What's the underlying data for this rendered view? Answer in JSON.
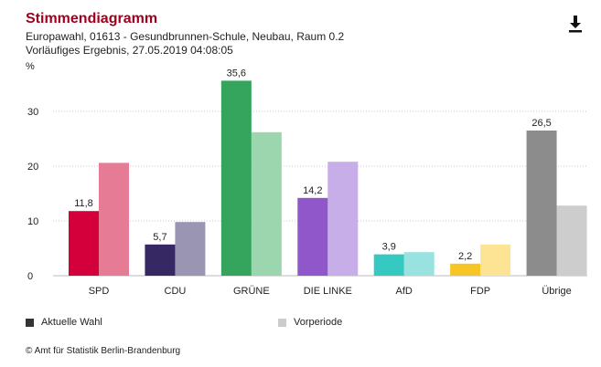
{
  "header": {
    "title": "Stimmendiagramm",
    "subtitle_line1": "Europawahl, 01613 - Gesundbrunnen-Schule, Neubau, Raum 0.2",
    "subtitle_line2": "Vorläufiges Ergebnis, 27.05.2019 04:08:05",
    "download_icon": "download-icon"
  },
  "legend": {
    "current_label": "Aktuelle Wahl",
    "current_color": "#333333",
    "previous_label": "Vorperiode",
    "previous_color": "#cccccc"
  },
  "footer": {
    "copyright": "© Amt für Statistik Berlin-Brandenburg"
  },
  "chart_data": {
    "type": "bar",
    "ylabel": "%",
    "ylim": [
      0,
      40
    ],
    "yticks": [
      "0",
      "10",
      "20",
      "30"
    ],
    "grid": true,
    "legend_position": "bottom",
    "categories": [
      "SPD",
      "CDU",
      "GRÜNE",
      "DIE LINKE",
      "AfD",
      "FDP",
      "Übrige"
    ],
    "series": [
      {
        "name": "Aktuelle Wahl",
        "values": [
          11.8,
          5.7,
          35.6,
          14.2,
          3.9,
          2.2,
          26.5
        ],
        "labels": [
          "11,8",
          "5,7",
          "35,6",
          "14,2",
          "3,9",
          "2,2",
          "26,5"
        ],
        "colors": [
          "#d4003c",
          "#352863",
          "#35a55e",
          "#8f57c9",
          "#35c9c1",
          "#f7c524",
          "#8c8c8c"
        ]
      },
      {
        "name": "Vorperiode",
        "values": [
          20.6,
          9.8,
          26.2,
          20.8,
          4.3,
          5.7,
          12.8
        ],
        "colors": [
          "#e57b95",
          "#9b95b4",
          "#9cd6ae",
          "#c8aee8",
          "#98e3df",
          "#fde394",
          "#cdcdcd"
        ]
      }
    ]
  }
}
